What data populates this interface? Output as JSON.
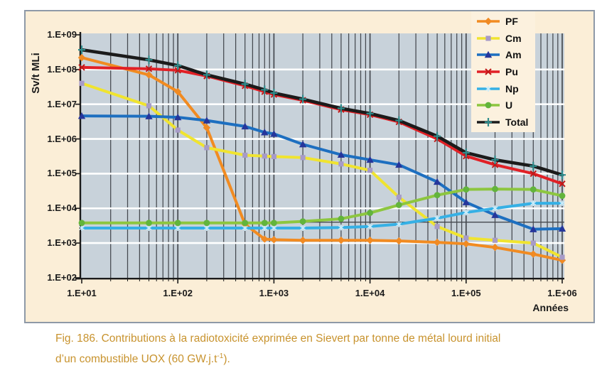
{
  "figure": {
    "y_axis_title": "Sv/t MLi",
    "x_axis_title": "Années",
    "caption": {
      "line1": "Fig. 186. Contributions à la radiotoxicité exprimée en Sievert par tonne de métal lourd initial",
      "line2_pre": "d’un combustible UOX (60 GW.j.t",
      "line2_sup": "-1",
      "line2_post": ")."
    },
    "colors": {
      "page_bg": "#FFFFFF",
      "panel_bg": "#FBEED7",
      "panel_border": "#8E99A7",
      "plot_bg": "#C8D2DA",
      "grid_dark": "#45494F",
      "grid_white": "#FFFFFF",
      "axis_line": "#1B1B1B",
      "legend_bg": "#FCF1DE",
      "caption_text": "#C8932E",
      "tick_text": "#1A1A1A"
    }
  },
  "chart_data": {
    "type": "line",
    "x_scale": "log",
    "y_scale": "log",
    "xlim": [
      10,
      1000000
    ],
    "ylim": [
      100,
      1000000000
    ],
    "xlabel": "Années",
    "ylabel": "Sv/t MLi",
    "legend_position": "top-right",
    "grid": "log grid: dark vertical lines, white horizontal decade lines",
    "crossing_line_y": 4000,
    "x_ticks": [
      {
        "label": "1.E+01",
        "value": 10
      },
      {
        "label": "1.E+02",
        "value": 100
      },
      {
        "label": "1.E+03",
        "value": 1000
      },
      {
        "label": "1.E+04",
        "value": 10000
      },
      {
        "label": "1.E+05",
        "value": 100000
      },
      {
        "label": "1.E+06",
        "value": 1000000
      }
    ],
    "y_ticks": [
      {
        "label": "1.E+09",
        "value": 1000000000
      },
      {
        "label": "1.E+08",
        "value": 100000000
      },
      {
        "label": "1.E+07",
        "value": 10000000
      },
      {
        "label": "1.E+06",
        "value": 1000000
      },
      {
        "label": "1.E+05",
        "value": 100000
      },
      {
        "label": "1.E+04",
        "value": 10000
      },
      {
        "label": "1.E+03",
        "value": 1000
      },
      {
        "label": "1.E+02",
        "value": 100
      }
    ],
    "x": [
      10,
      50,
      100,
      200,
      500,
      800,
      1000,
      2000,
      5000,
      10000,
      20000,
      50000,
      100000,
      200000,
      500000,
      1000000
    ],
    "series": [
      {
        "name": "PF",
        "color": "#F18B21",
        "marker": "diamond",
        "marker_color": "#F08A23",
        "y": [
          220000000.0,
          70000000.0,
          23000000.0,
          2100000.0,
          3500.0,
          1300.0,
          1250.0,
          1200.0,
          1200.0,
          1200.0,
          1150.0,
          1050.0,
          950.0,
          750.0,
          480.0,
          320.0
        ]
      },
      {
        "name": "Cm",
        "color": "#F0E42F",
        "marker": "square",
        "marker_color": "#A79BC8",
        "y": [
          40000000.0,
          9000000.0,
          1800000.0,
          560000.0,
          340000.0,
          320000.0,
          310000.0,
          290000.0,
          190000.0,
          125000.0,
          21000.0,
          3000.0,
          1400.0,
          1200.0,
          1000.0,
          390.0
        ]
      },
      {
        "name": "Am",
        "color": "#1D6FC0",
        "marker": "triangle",
        "marker_color": "#26369B",
        "y": [
          4600000.0,
          4500000.0,
          4200000.0,
          3400000.0,
          2300000.0,
          1550000.0,
          1400000.0,
          700000.0,
          350000.0,
          250000.0,
          180000.0,
          58000.0,
          15000.0,
          6400.0,
          2500.0,
          2600.0
        ]
      },
      {
        "name": "Pu",
        "color": "#E12026",
        "marker": "x",
        "marker_color": "#C01818",
        "y": [
          115000000.0,
          105000000.0,
          95000000.0,
          65000000.0,
          34000000.0,
          23000000.0,
          19000000.0,
          13000000.0,
          7000000.0,
          5000000.0,
          3100000.0,
          1000000.0,
          320000.0,
          180000.0,
          100000.0,
          51000.0
        ]
      },
      {
        "name": "Np",
        "color": "#35B0E5",
        "marker": "asterisk",
        "marker_color": "#CBEDFA",
        "y": [
          2700.0,
          2700.0,
          2700.0,
          2700.0,
          2700.0,
          2700.0,
          2700.0,
          2700.0,
          2800.0,
          3000.0,
          3500.0,
          5200.0,
          7600.0,
          10000.0,
          14000.0,
          14000.0
        ]
      },
      {
        "name": "U",
        "color": "#8DC63F",
        "marker": "circle",
        "marker_color": "#62B43C",
        "y": [
          3800.0,
          3800.0,
          3800.0,
          3800.0,
          3800.0,
          3800.0,
          3800.0,
          4200.0,
          5000.0,
          7400.0,
          12500.0,
          24000.0,
          35000.0,
          36000.0,
          35000.0,
          23000.0
        ]
      },
      {
        "name": "Total",
        "color": "#1B1B1B",
        "width": 4.6,
        "marker": "plus",
        "marker_color": "#2F8C8C",
        "y": [
          370000000.0,
          190000000.0,
          130000000.0,
          70000000.0,
          38000000.0,
          26000000.0,
          21000000.0,
          14000000.0,
          7600000.0,
          5400000.0,
          3400000.0,
          1200000.0,
          400000.0,
          250000.0,
          165000.0,
          92000.0
        ]
      }
    ]
  }
}
